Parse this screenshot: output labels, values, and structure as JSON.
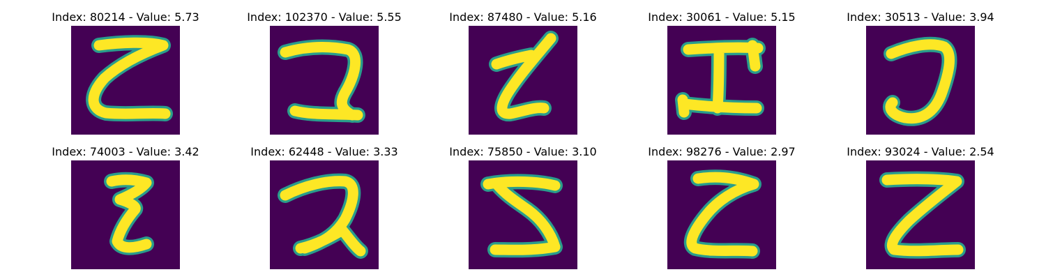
{
  "panels": [
    {
      "title": "Index: 80214 - Value: 5.73",
      "glyph": "Z-curl"
    },
    {
      "title": "Index: 102370 - Value: 5.55",
      "glyph": "2-hook"
    },
    {
      "title": "Index: 87480 - Value: 5.16",
      "glyph": "z-slant"
    },
    {
      "title": "Index: 30061 - Value: 5.15",
      "glyph": "I-cross"
    },
    {
      "title": "Index: 30513 - Value: 3.94",
      "glyph": "J-curve"
    },
    {
      "title": "Index: 74003 - Value: 3.42",
      "glyph": "epsilon-z"
    },
    {
      "title": "Index: 62448 - Value: 3.33",
      "glyph": "2-loop"
    },
    {
      "title": "Index: 75850 - Value: 3.10",
      "glyph": "5-s"
    },
    {
      "title": "Index: 98276 - Value: 2.97",
      "glyph": "z-curl"
    },
    {
      "title": "Index: 93024 - Value: 2.54",
      "glyph": "Z-block"
    }
  ],
  "colors": {
    "background": "#440154",
    "edge": "#2a9d8c",
    "stroke": "#fde725"
  }
}
